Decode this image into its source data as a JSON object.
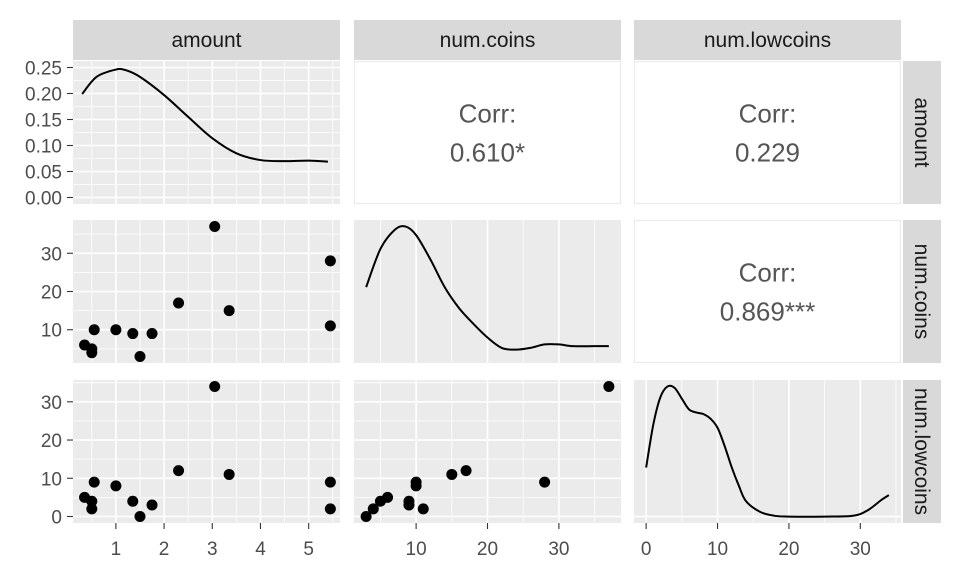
{
  "chart_data": {
    "type": "scatter",
    "variables": [
      "amount",
      "num.coins",
      "num.lowcoins"
    ],
    "ticks": {
      "amount": {
        "density": [
          "0.00",
          "0.05",
          "0.10",
          "0.15",
          "0.20",
          "0.25"
        ],
        "values": [
          "1",
          "2",
          "3",
          "4",
          "5"
        ]
      },
      "num.coins": {
        "values": [
          "10",
          "20",
          "30"
        ]
      },
      "num.lowcoins": {
        "values": [
          "0",
          "10",
          "20",
          "30"
        ]
      }
    },
    "density": {
      "amount": {
        "x": [
          0.3,
          0.6,
          1.0,
          1.2,
          1.5,
          2.0,
          2.5,
          3.0,
          3.5,
          4.0,
          4.5,
          5.0,
          5.4
        ],
        "y": [
          0.199,
          0.232,
          0.246,
          0.245,
          0.232,
          0.197,
          0.155,
          0.114,
          0.085,
          0.072,
          0.07,
          0.071,
          0.069
        ]
      },
      "num.coins": {
        "x": [
          3,
          5,
          7,
          8.5,
          10,
          12,
          14,
          16,
          18,
          20,
          22,
          24,
          26,
          28,
          30,
          32,
          35,
          37
        ],
        "y": [
          0.4,
          0.62,
          0.73,
          0.75,
          0.7,
          0.56,
          0.4,
          0.28,
          0.19,
          0.11,
          0.05,
          0.04,
          0.05,
          0.07,
          0.07,
          0.06,
          0.06,
          0.06
        ]
      },
      "num.lowcoins": {
        "x": [
          0,
          1,
          2,
          3,
          4,
          5,
          6,
          7,
          8,
          9,
          10,
          11,
          12,
          13,
          14,
          16,
          18,
          20,
          25,
          29,
          31,
          33,
          34
        ],
        "y": [
          0.32,
          0.6,
          0.78,
          0.85,
          0.84,
          0.77,
          0.7,
          0.68,
          0.67,
          0.64,
          0.58,
          0.46,
          0.32,
          0.2,
          0.1,
          0.03,
          0.005,
          0.0,
          0.0,
          0.005,
          0.04,
          0.11,
          0.14
        ]
      }
    },
    "points": {
      "amount": [
        0.35,
        0.5,
        0.5,
        0.55,
        1.0,
        1.35,
        1.5,
        1.75,
        2.3,
        3.05,
        3.35,
        5.45,
        5.45
      ],
      "num.coins": [
        6,
        5,
        4,
        10,
        10,
        9,
        3,
        9,
        17,
        37,
        15,
        28,
        11
      ],
      "num.lowcoins": [
        5,
        4,
        2,
        9,
        8,
        4,
        0,
        3,
        12,
        34,
        11,
        9,
        2
      ]
    },
    "correlations": [
      {
        "row": "amount",
        "col": "num.coins",
        "label": "Corr:",
        "value": "0.610*"
      },
      {
        "row": "amount",
        "col": "num.lowcoins",
        "label": "Corr:",
        "value": "0.229"
      },
      {
        "row": "num.coins",
        "col": "num.lowcoins",
        "label": "Corr:",
        "value": "0.869***"
      }
    ],
    "colors": {
      "panel_bg": "#ebebeb",
      "grid": "#ffffff",
      "strip_bg": "#d9d9d9",
      "point": "#000000",
      "line": "#000000",
      "corr_text": "#555555"
    }
  }
}
